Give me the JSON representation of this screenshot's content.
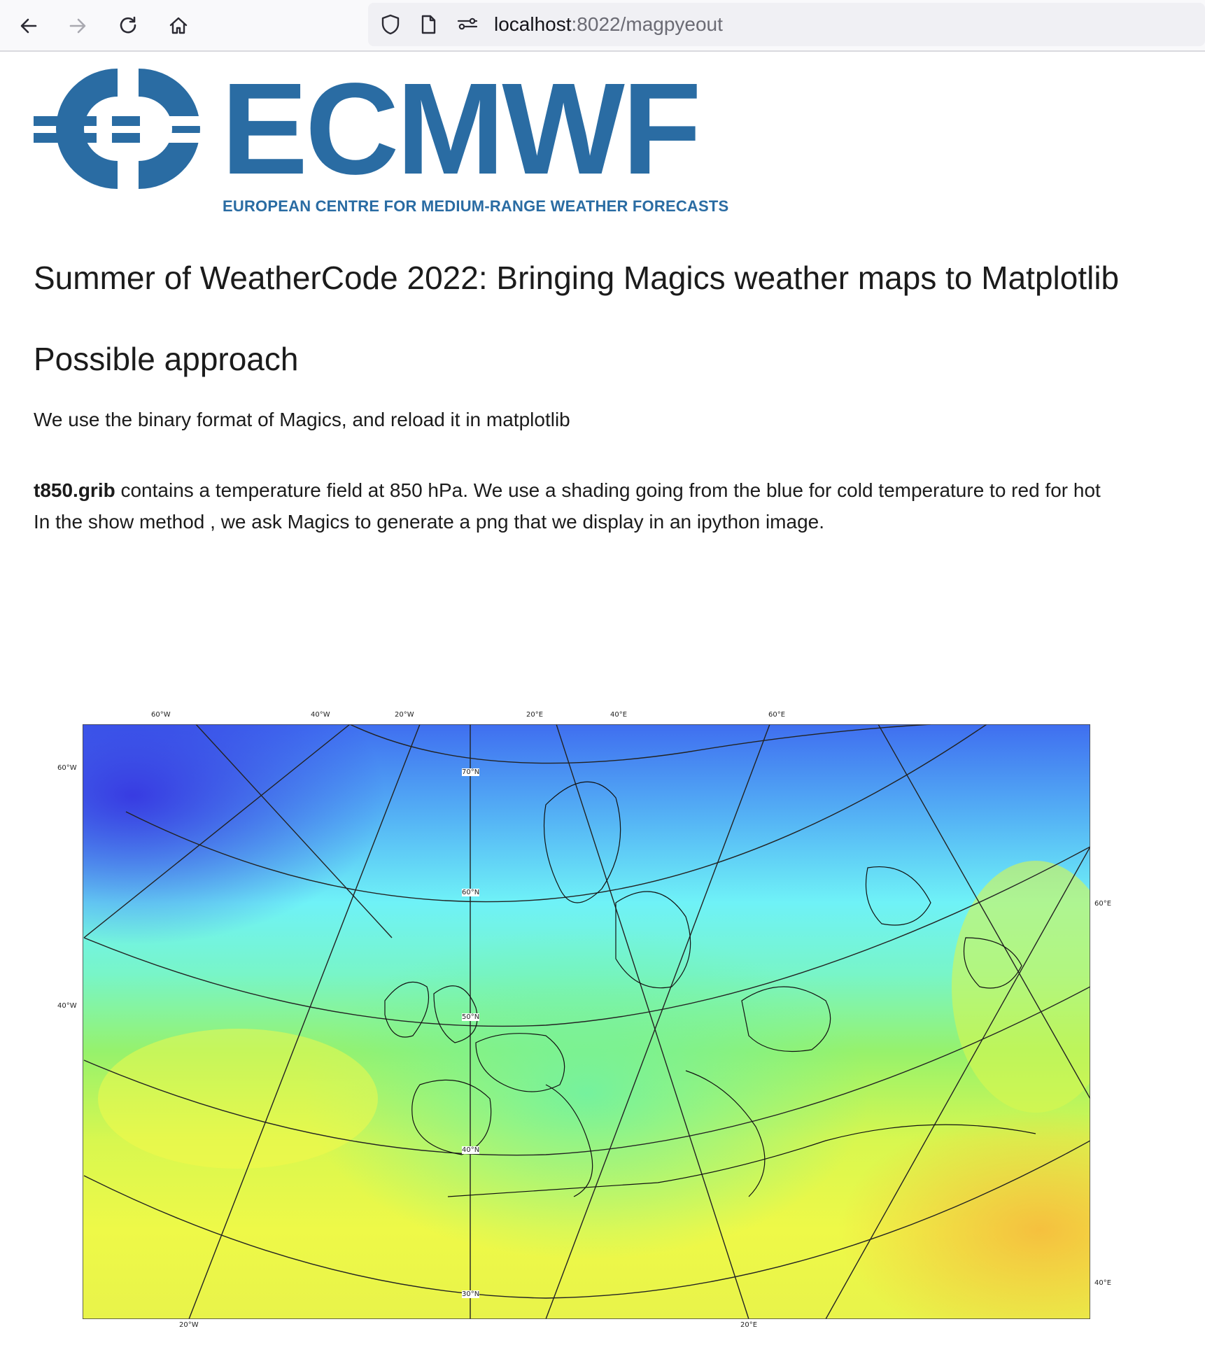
{
  "browser": {
    "url_host": "localhost",
    "url_rest": ":8022/magpyeout",
    "icons": {
      "back": "arrow-left-icon",
      "forward": "arrow-right-icon",
      "reload": "reload-icon",
      "home": "home-icon",
      "shield": "shield-icon",
      "page": "page-icon",
      "permissions": "permissions-icon"
    }
  },
  "logo": {
    "word": "ECMWF",
    "tagline": "EUROPEAN CENTRE FOR MEDIUM-RANGE WEATHER FORECASTS",
    "color": "#2a6ca3"
  },
  "content": {
    "title": "Summer of WeatherCode 2022: Bringing Magics weather maps to Matplotlib",
    "section_title": "Possible approach",
    "intro": "We use the binary format of Magics, and reload it in matplotlib",
    "desc_bold": "t850.grib",
    "desc_line1": " contains a temperature field at 850 hPa. We use a shading going from the blue for cold temperature to red for hot",
    "desc_line2": "In the show method , we ask Magics to generate a png that we display in an ipython image."
  },
  "map": {
    "top_labels": [
      "60°W",
      "40°W",
      "20°W",
      "20°E",
      "40°E",
      "60°E"
    ],
    "left_labels": [
      "60°W",
      "40°W"
    ],
    "right_labels": [
      "60°E",
      "40°E"
    ],
    "bottom_labels": [
      "20°W",
      "20°E"
    ],
    "lat_labels": [
      "70°N",
      "60°N",
      "50°N",
      "40°N",
      "30°N"
    ]
  }
}
